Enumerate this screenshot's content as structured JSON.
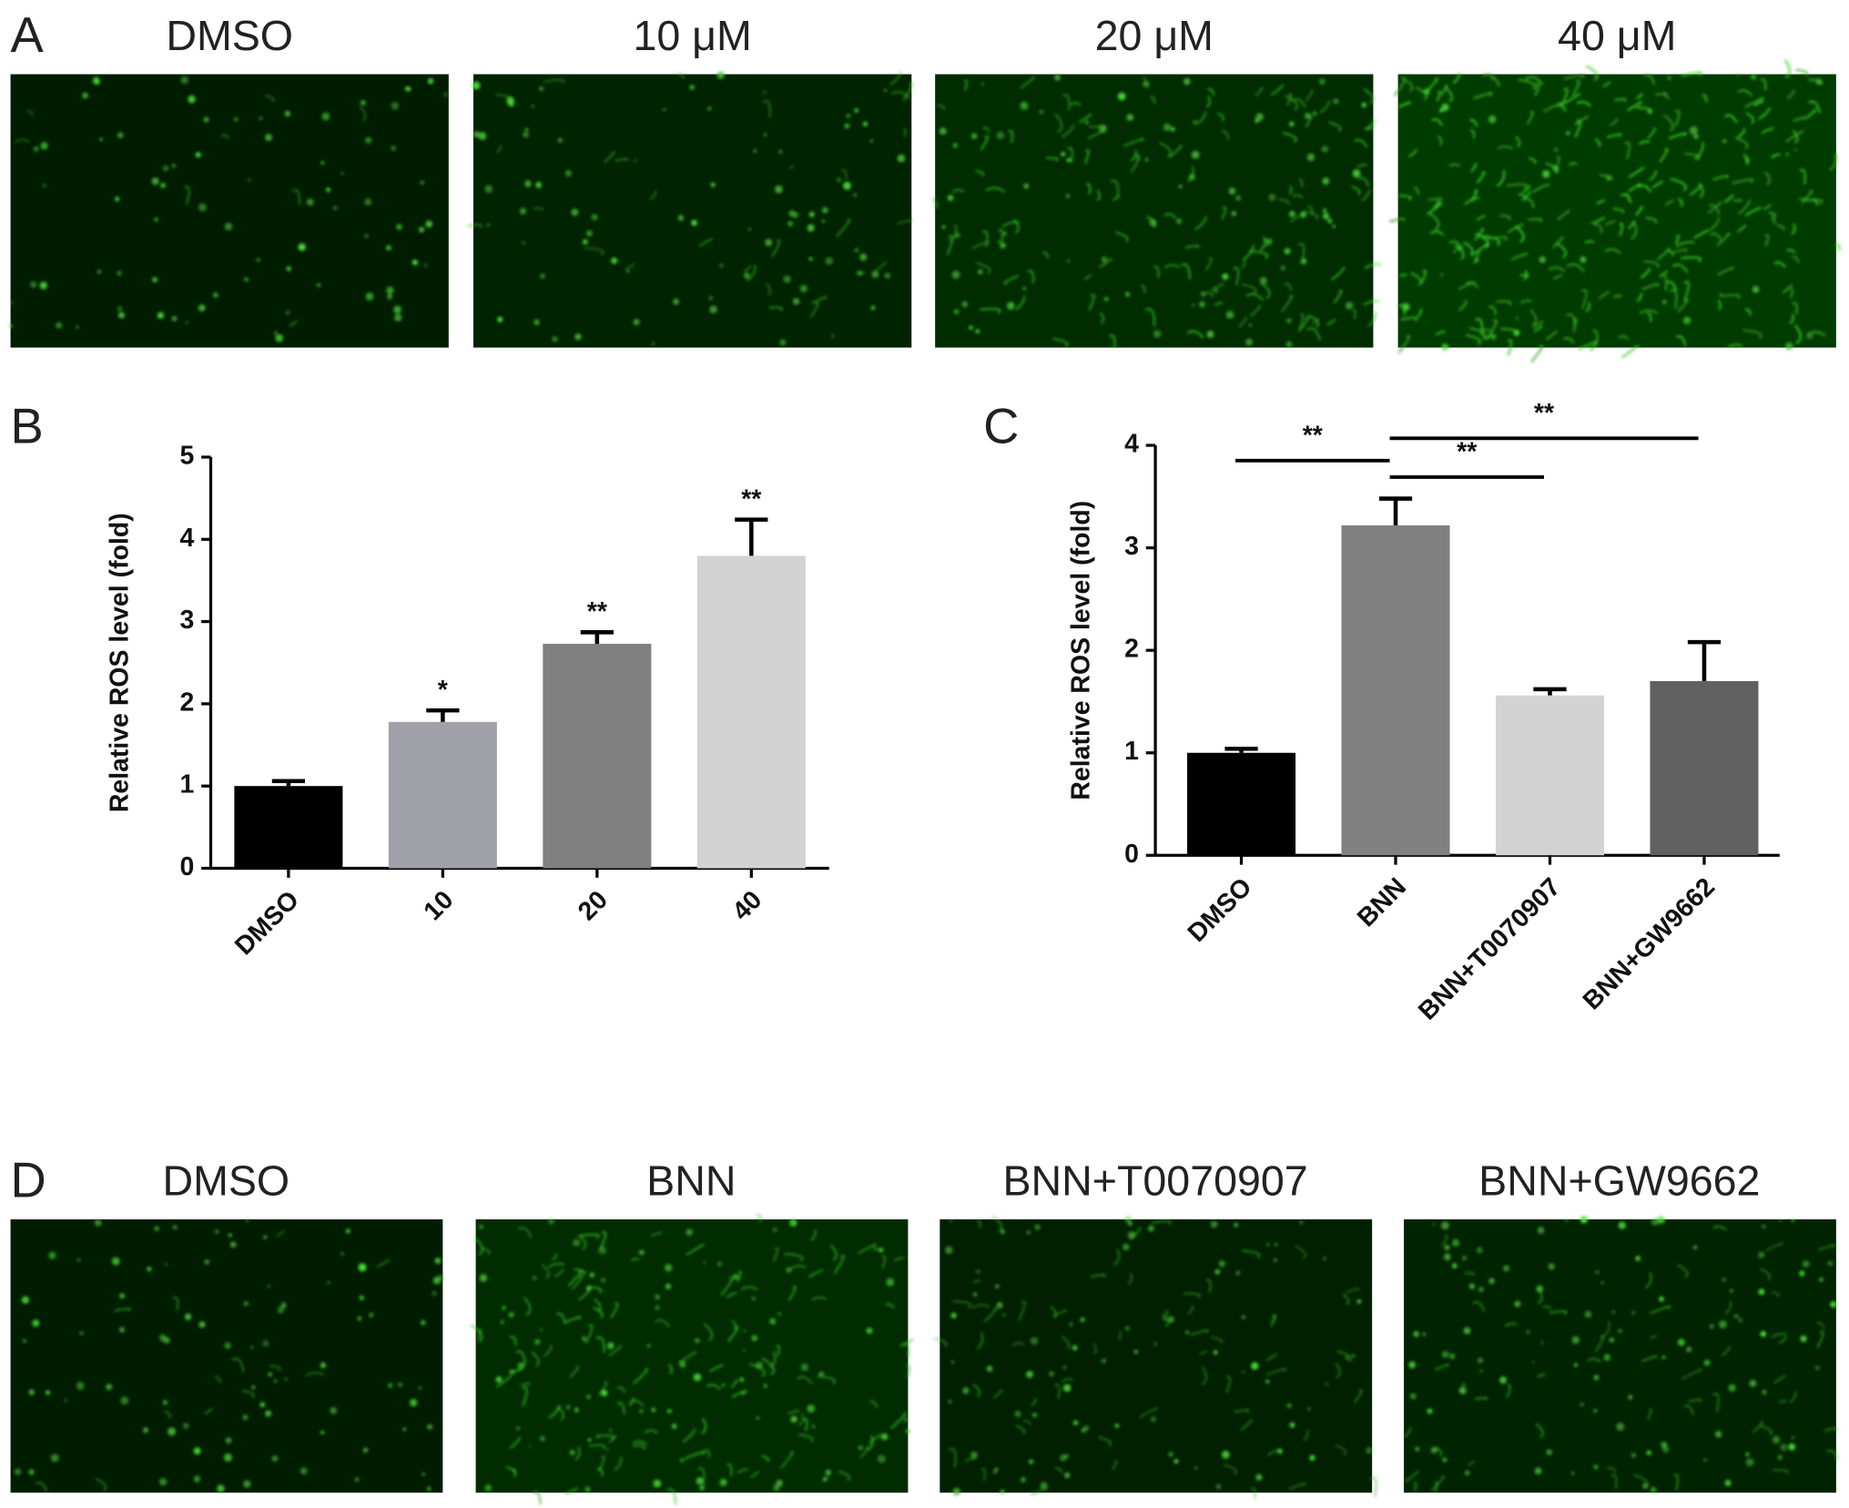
{
  "panel_labels": [
    "A",
    "B",
    "C",
    "D"
  ],
  "images_a": {
    "captions": [
      "DMSO",
      "10 μM",
      "20 μM",
      "40 μM"
    ]
  },
  "images_d": {
    "captions": [
      "DMSO",
      "BNN",
      "BNN+T0070907",
      "BNN+GW9662"
    ]
  },
  "chart_data": [
    {
      "type": "bar",
      "y_label": "Relative ROS level (fold)",
      "categories": [
        "DMSO",
        "10",
        "20",
        "40"
      ],
      "values": [
        1.0,
        1.78,
        2.73,
        3.8
      ],
      "errors": [
        0.06,
        0.14,
        0.14,
        0.44
      ],
      "colors": [
        "#000000",
        "#a0a0a8",
        "#808080",
        "#d3d3d3"
      ],
      "significance": [
        null,
        "*",
        "**",
        "**"
      ],
      "ylim": [
        0,
        5
      ],
      "yticks": [
        0,
        1,
        2,
        3,
        4,
        5
      ]
    },
    {
      "type": "bar",
      "y_label": "Relative ROS level (fold)",
      "categories": [
        "DMSO",
        "BNN",
        "BNN+T0070907",
        "BNN+GW9662"
      ],
      "values": [
        1.0,
        3.22,
        1.56,
        1.7
      ],
      "errors": [
        0.04,
        0.26,
        0.06,
        0.38
      ],
      "colors": [
        "#000000",
        "#808080",
        "#d3d3d3",
        "#606060"
      ],
      "comparisons": [
        {
          "from": 0,
          "to": 1,
          "label": "**"
        },
        {
          "from": 1,
          "to": 2,
          "label": "**"
        },
        {
          "from": 1,
          "to": 3,
          "label": "**"
        }
      ],
      "ylim": [
        0,
        4
      ],
      "yticks": [
        0,
        1,
        2,
        3,
        4
      ]
    }
  ]
}
